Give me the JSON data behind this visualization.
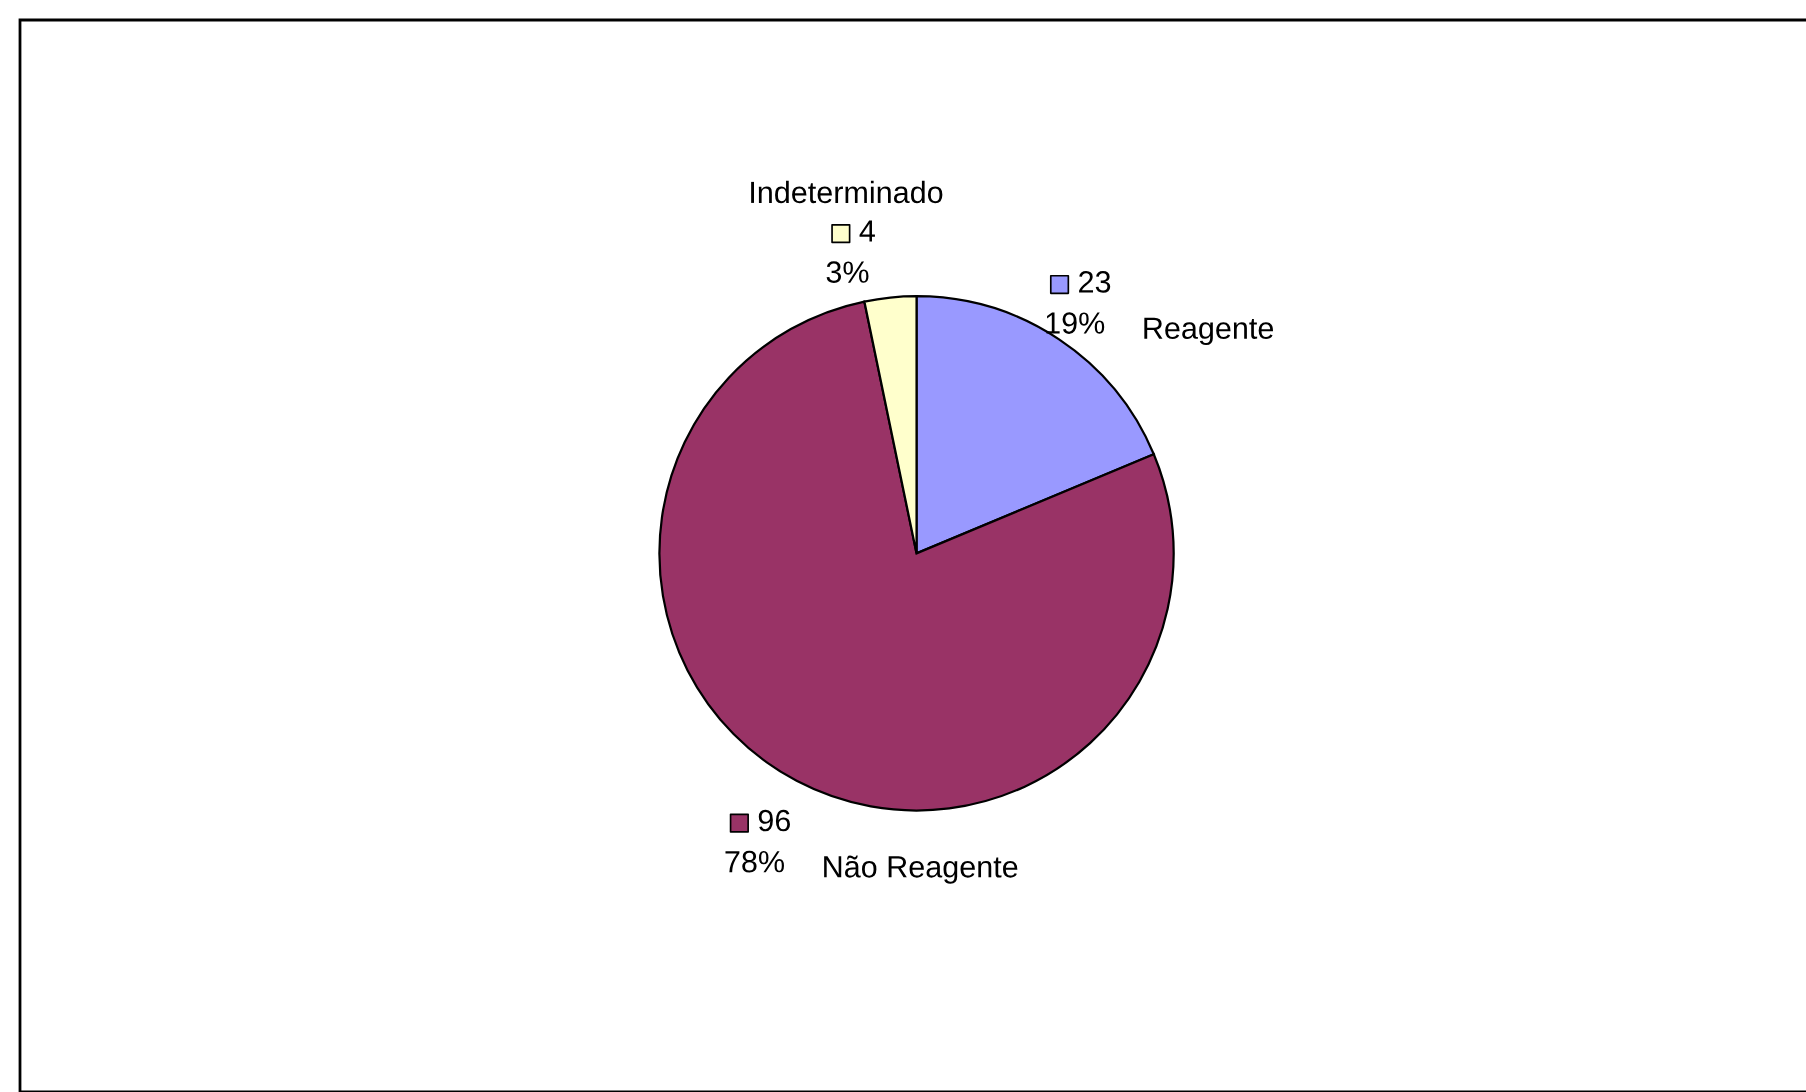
{
  "chart_data": {
    "type": "pie",
    "categories": [
      "Reagente",
      "Não Reagente",
      "Indeterminado"
    ],
    "values": [
      23,
      96,
      4
    ],
    "colors": [
      "#9999ff",
      "#993366",
      "#ffffcc"
    ],
    "value_labels": [
      "23",
      "96",
      "4"
    ],
    "annotations": [
      "19%",
      "78%",
      "3%"
    ],
    "legend": false
  }
}
